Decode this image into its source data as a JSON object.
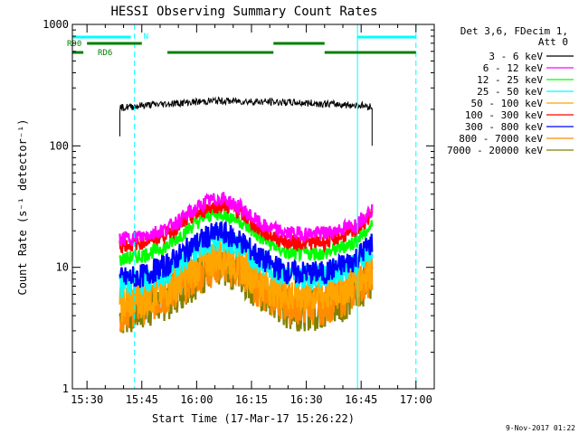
{
  "title": "HESSI Observing Summary Count Rates",
  "footer_date": "9-Nov-2017 01:22",
  "legend": {
    "header_line1": "Det 3,6, FDecim 1,",
    "header_line2": "Att 0",
    "entries": [
      {
        "label": "3 - 6 keV",
        "color": "#000000"
      },
      {
        "label": "6 - 12 keV",
        "color": "#ff00ff"
      },
      {
        "label": "12 - 25 keV",
        "color": "#00ff00"
      },
      {
        "label": "25 - 50 keV",
        "color": "#00ffff"
      },
      {
        "label": "50 - 100 keV",
        "color": "#ffa500"
      },
      {
        "label": "100 - 300 keV",
        "color": "#ff0000"
      },
      {
        "label": "300 - 800 keV",
        "color": "#0000ff"
      },
      {
        "label": "800 - 7000 keV",
        "color": "#ff8c00"
      },
      {
        "label": "7000 - 20000 keV",
        "color": "#808000"
      }
    ]
  },
  "annotations": {
    "n_label": "N",
    "rd0_label": "RD0",
    "rd6_label": "RD6",
    "status_bar_color": "#00ffff",
    "rd_bar_color": "#008000",
    "vline_color": "#00ffff"
  },
  "chart_data": {
    "type": "line",
    "title": "HESSI Observing Summary Count Rates",
    "xlabel": "Start Time (17-Mar-17 15:26:22)",
    "ylabel": "Count Rate (s⁻¹ detector⁻¹)",
    "y_scale": "log",
    "ylim": [
      1,
      1000
    ],
    "xlim": [
      "15:26",
      "17:05"
    ],
    "x_ticks": [
      "15:30",
      "15:45",
      "16:00",
      "16:15",
      "16:30",
      "16:45",
      "17:00"
    ],
    "y_ticks": [
      "1",
      "10",
      "100",
      "1000"
    ],
    "grid": false,
    "legend_position": "right",
    "series": [
      {
        "name": "3 - 6 keV",
        "color": "#000000",
        "x": [
          "15:39",
          "15:45",
          "15:55",
          "16:05",
          "16:15",
          "16:25",
          "16:35",
          "16:45",
          "16:48"
        ],
        "y": [
          205,
          215,
          225,
          235,
          232,
          228,
          222,
          215,
          210
        ]
      },
      {
        "name": "6 - 12 keV",
        "color": "#ff00ff",
        "x": [
          "15:39",
          "15:45",
          "15:52",
          "15:58",
          "16:03",
          "16:07",
          "16:12",
          "16:18",
          "16:25",
          "16:35",
          "16:43",
          "16:48"
        ],
        "y": [
          17,
          18,
          21,
          28,
          35,
          37,
          31,
          22,
          19,
          19,
          22,
          30
        ]
      },
      {
        "name": "12 - 25 keV",
        "color": "#00ff00",
        "x": [
          "15:39",
          "15:45",
          "15:52",
          "15:58",
          "16:03",
          "16:07",
          "16:12",
          "16:18",
          "16:25",
          "16:35",
          "16:43",
          "16:48"
        ],
        "y": [
          11.5,
          12.5,
          15,
          21,
          27,
          28,
          24,
          17,
          13,
          13,
          16,
          22
        ]
      },
      {
        "name": "25 - 50 keV",
        "color": "#00ffff",
        "x": [
          "15:39",
          "15:45",
          "15:52",
          "15:58",
          "16:03",
          "16:07",
          "16:12",
          "16:18",
          "16:25",
          "16:35",
          "16:43",
          "16:48"
        ],
        "y": [
          7,
          7.5,
          9,
          12.5,
          16,
          17,
          14.5,
          10.5,
          8.5,
          8.5,
          10.5,
          14
        ]
      },
      {
        "name": "50 - 100 keV",
        "color": "#ffa500",
        "x": [
          "15:39",
          "15:45",
          "15:52",
          "15:58",
          "16:03",
          "16:07",
          "16:12",
          "16:18",
          "16:25",
          "16:35",
          "16:43",
          "16:48"
        ],
        "y": [
          5,
          5.5,
          6.5,
          9,
          11.5,
          12.5,
          10.5,
          7.5,
          6,
          6,
          7.5,
          10
        ]
      },
      {
        "name": "100 - 300 keV",
        "color": "#ff0000",
        "x": [
          "15:39",
          "15:45",
          "15:52",
          "15:58",
          "16:03",
          "16:07",
          "16:12",
          "16:18",
          "16:25",
          "16:35",
          "16:43",
          "16:48"
        ],
        "y": [
          15,
          16,
          19,
          25,
          31,
          33,
          28,
          19.5,
          16,
          16,
          19.5,
          27
        ]
      },
      {
        "name": "300 - 800 keV",
        "color": "#0000ff",
        "x": [
          "15:39",
          "15:45",
          "15:52",
          "15:58",
          "16:03",
          "16:07",
          "16:12",
          "16:18",
          "16:25",
          "16:35",
          "16:43",
          "16:48"
        ],
        "y": [
          8,
          8.5,
          10.5,
          14.5,
          18,
          19.5,
          16.5,
          11.5,
          9,
          9,
          11.5,
          16
        ]
      },
      {
        "name": "800 - 7000 keV",
        "color": "#ff8c00",
        "x": [
          "15:39",
          "15:45",
          "15:52",
          "15:58",
          "16:03",
          "16:07",
          "16:12",
          "16:18",
          "16:25",
          "16:35",
          "16:43",
          "16:48"
        ],
        "y": [
          4.5,
          5,
          6,
          8,
          10,
          11,
          9.5,
          6.5,
          5,
          5,
          6.5,
          9
        ]
      },
      {
        "name": "7000 - 20000 keV",
        "color": "#808000",
        "x": [
          "15:39",
          "15:45",
          "15:52",
          "15:58",
          "16:03",
          "16:07",
          "16:12",
          "16:18",
          "16:25",
          "16:35",
          "16:43",
          "16:48"
        ],
        "y": [
          4,
          4.5,
          5.5,
          7.5,
          9.5,
          10.5,
          9,
          6,
          4.5,
          4.5,
          6,
          8.5
        ]
      }
    ],
    "vertical_lines": [
      {
        "time": "15:26",
        "style": "solid"
      },
      {
        "time": "15:43",
        "style": "dashed"
      },
      {
        "time": "16:44",
        "style": "solid"
      },
      {
        "time": "17:00",
        "style": "dashed"
      }
    ],
    "status_segments": [
      {
        "row": "N",
        "start": "15:26",
        "end": "15:42"
      },
      {
        "row": "N",
        "start": "16:44",
        "end": "17:00"
      },
      {
        "row": "RD0",
        "start": "15:30",
        "end": "15:45"
      },
      {
        "row": "RD0",
        "start": "16:21",
        "end": "16:35"
      },
      {
        "row": "RD6",
        "start": "15:26",
        "end": "15:29"
      },
      {
        "row": "RD6",
        "start": "15:52",
        "end": "16:21"
      },
      {
        "row": "RD6",
        "start": "16:35",
        "end": "17:00"
      }
    ]
  }
}
